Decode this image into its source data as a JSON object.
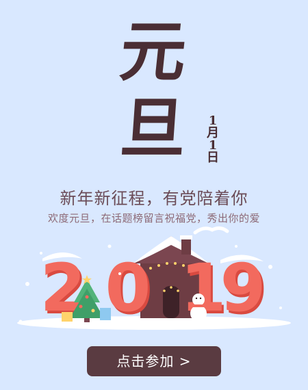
{
  "banner": {
    "title_char_1": "元",
    "title_char_2": "旦",
    "date": [
      "1",
      "月",
      "1",
      "日"
    ],
    "headline": "新年新征程，有党陪着你",
    "subline": "欢度元旦，在话题榜留言祝福党，秀出你的爱",
    "year_digits": [
      "2",
      "0",
      "1",
      "9"
    ],
    "cta_label": "点击参加 >"
  },
  "colors": {
    "background": "#d9e8ff",
    "title_ink": "#4a2e34",
    "number_red": "#f05a4e",
    "button": "#5a3b41"
  }
}
